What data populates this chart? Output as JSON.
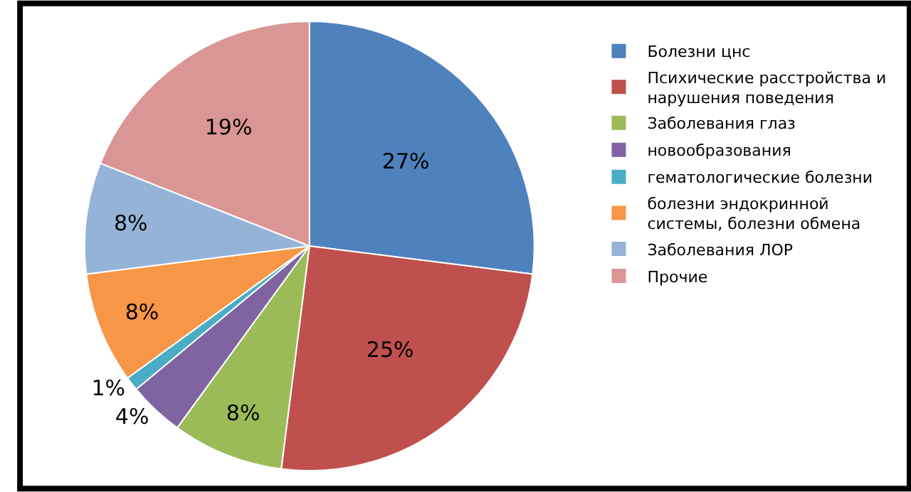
{
  "chart_data": {
    "type": "pie",
    "categories": [
      "Болезни цнс",
      "Психические расстройства и нарушения поведения",
      "Заболевания глаз",
      "новообразования",
      "гематологические болезни",
      "болезни эндокринной системы, болезни обмена",
      "Заболевания ЛОР",
      "Прочие"
    ],
    "values": [
      27,
      25,
      8,
      4,
      1,
      8,
      8,
      19
    ],
    "value_labels": [
      "27%",
      "25%",
      "8%",
      "4%",
      "1%",
      "8%",
      "8%",
      "19%"
    ],
    "colors": [
      "#4f81bd",
      "#c0504d",
      "#9bbb59",
      "#8064a2",
      "#4bacc6",
      "#f79646",
      "#95b3d7",
      "#d99694"
    ],
    "legend": "right"
  }
}
